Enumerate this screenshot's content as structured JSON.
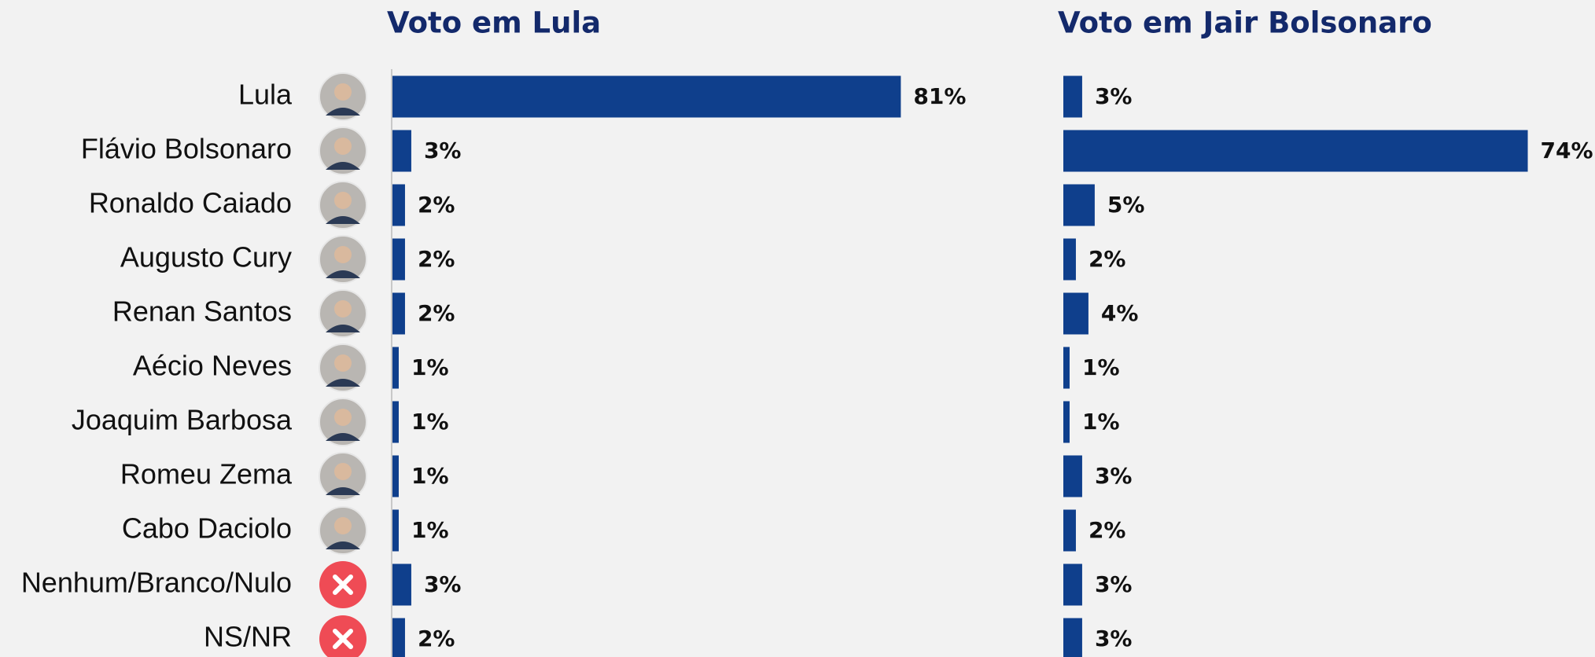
{
  "chart_data": [
    {
      "type": "bar",
      "orientation": "horizontal",
      "title": "Voto em Lula",
      "color": "#0f3f8c",
      "categories": [
        "Lula",
        "Flávio Bolsonaro",
        "Ronaldo Caiado",
        "Augusto Cury",
        "Renan Santos",
        "Aécio Neves",
        "Joaquim Barbosa",
        "Romeu Zema",
        "Cabo Daciolo",
        "Nenhum/Branco/Nulo",
        "NS/NR"
      ],
      "values": [
        81,
        3,
        2,
        2,
        2,
        1,
        1,
        1,
        1,
        3,
        2
      ],
      "value_labels": [
        "81%",
        "3%",
        "2%",
        "2%",
        "2%",
        "1%",
        "1%",
        "1%",
        "1%",
        "3%",
        "2%"
      ]
    },
    {
      "type": "bar",
      "orientation": "horizontal",
      "title": "Voto em Jair Bolsonaro",
      "color": "#0f3f8c",
      "values": [
        3,
        74,
        5,
        2,
        4,
        1,
        1,
        3,
        2,
        3,
        3
      ],
      "value_labels": [
        "3%",
        "74%",
        "5%",
        "2%",
        "4%",
        "1%",
        "1%",
        "3%",
        "2%",
        "3%",
        "3%"
      ]
    }
  ]
}
